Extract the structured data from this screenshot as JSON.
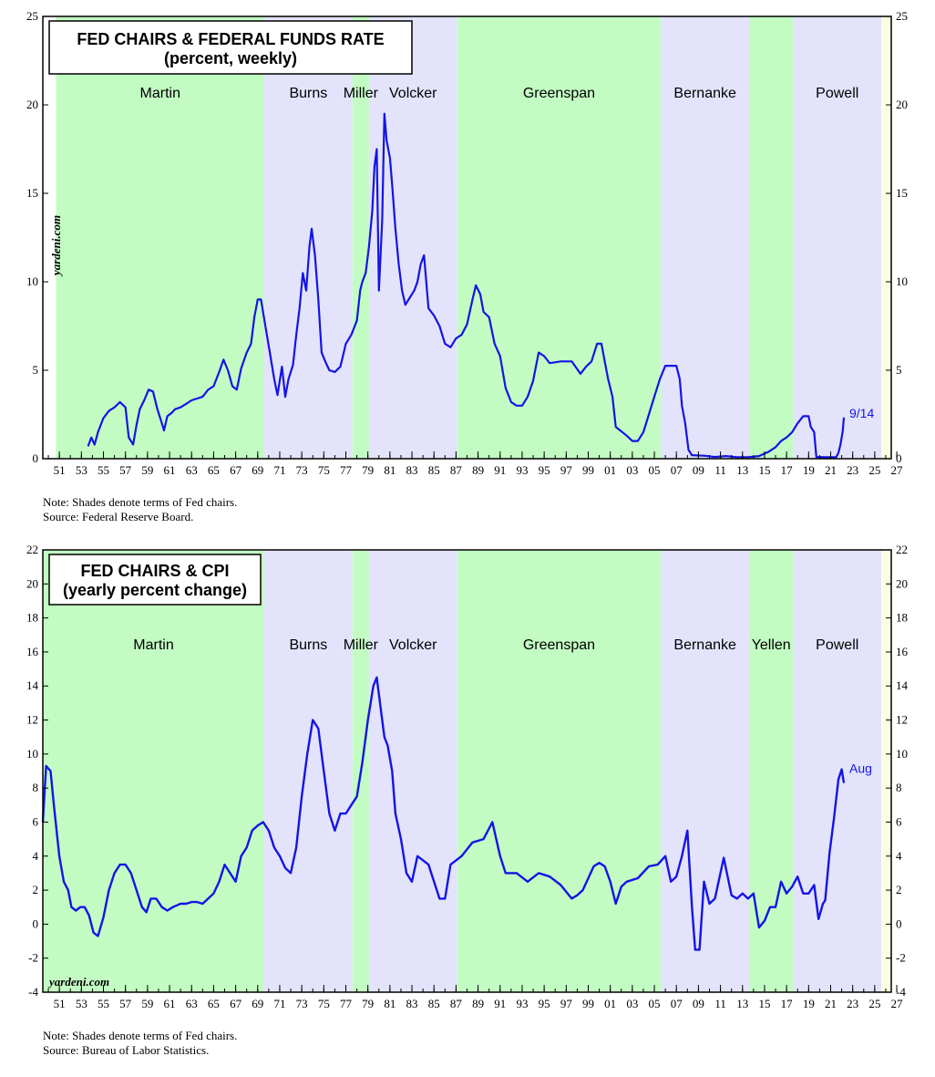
{
  "colors": {
    "line": "#1414e6",
    "green": "#c3fcc3",
    "lavender": "#e3e3fc",
    "future": "#fdfde3"
  },
  "chart_data": [
    {
      "type": "line",
      "id": "ffr",
      "title": "FED CHAIRS & FEDERAL FUNDS RATE",
      "subtitle": "(percent, weekly)",
      "brand": "yardeni.com",
      "xlim": [
        1950.0,
        2027.0
      ],
      "ylim": [
        0,
        25
      ],
      "yticks": [
        "0",
        "5",
        "10",
        "15",
        "20",
        "25"
      ],
      "xtick_labels": [
        "51",
        "53",
        "55",
        "57",
        "59",
        "61",
        "63",
        "65",
        "67",
        "69",
        "71",
        "73",
        "75",
        "77",
        "79",
        "81",
        "83",
        "85",
        "87",
        "89",
        "91",
        "93",
        "95",
        "97",
        "99",
        "01",
        "03",
        "05",
        "07",
        "09",
        "11",
        "13",
        "15",
        "17",
        "19",
        "21",
        "23",
        "25",
        "27"
      ],
      "note": "Note: Shades denote terms of Fed chairs.",
      "source": "Source: Federal Reserve Board.",
      "end_label": "9/14",
      "chairs": [
        {
          "name": "Martin",
          "start": 1951.2,
          "end": 1970.1,
          "shade": "green"
        },
        {
          "name": "Burns",
          "start": 1970.1,
          "end": 1978.1,
          "shade": "lavender"
        },
        {
          "name": "Miller",
          "start": 1978.1,
          "end": 1979.6,
          "shade": "green"
        },
        {
          "name": "Volcker",
          "start": 1979.6,
          "end": 1987.6,
          "shade": "lavender"
        },
        {
          "name": "Greenspan",
          "start": 1987.6,
          "end": 2006.1,
          "shade": "green"
        },
        {
          "name": "Bernanke",
          "start": 2006.1,
          "end": 2014.1,
          "shade": "lavender"
        },
        {
          "name": "",
          "start": 2014.1,
          "end": 2018.1,
          "shade": "green"
        },
        {
          "name": "Powell",
          "start": 2018.1,
          "end": 2026.1,
          "shade": "lavender"
        }
      ],
      "x": [
        1954.1,
        1954.4,
        1954.7,
        1955.0,
        1955.5,
        1956.0,
        1956.5,
        1957.0,
        1957.5,
        1957.8,
        1958.2,
        1958.5,
        1958.8,
        1959.2,
        1959.6,
        1960.0,
        1960.4,
        1960.7,
        1961.0,
        1961.3,
        1961.7,
        1962.0,
        1962.5,
        1963.0,
        1963.5,
        1964.0,
        1964.5,
        1965.0,
        1965.5,
        1966.0,
        1966.4,
        1966.8,
        1967.2,
        1967.6,
        1968.0,
        1968.5,
        1968.9,
        1969.2,
        1969.5,
        1969.8,
        1970.2,
        1970.6,
        1971.0,
        1971.3,
        1971.7,
        1972.0,
        1972.3,
        1972.7,
        1973.0,
        1973.3,
        1973.6,
        1973.9,
        1974.2,
        1974.4,
        1974.7,
        1975.0,
        1975.3,
        1975.7,
        1976.0,
        1976.5,
        1977.0,
        1977.5,
        1978.0,
        1978.5,
        1978.8,
        1979.0,
        1979.3,
        1979.6,
        1979.9,
        1980.1,
        1980.3,
        1980.5,
        1980.8,
        1981.0,
        1981.2,
        1981.5,
        1981.7,
        1982.0,
        1982.3,
        1982.6,
        1982.9,
        1983.3,
        1983.7,
        1984.0,
        1984.3,
        1984.6,
        1985.0,
        1985.5,
        1986.0,
        1986.5,
        1987.0,
        1987.5,
        1988.0,
        1988.5,
        1989.0,
        1989.3,
        1989.7,
        1990.0,
        1990.5,
        1991.0,
        1991.5,
        1992.0,
        1992.5,
        1993.0,
        1993.5,
        1994.0,
        1994.5,
        1995.0,
        1995.5,
        1996.0,
        1997.0,
        1998.0,
        1998.8,
        1999.3,
        1999.8,
        2000.3,
        2000.7,
        2001.0,
        2001.3,
        2001.7,
        2002.0,
        2003.0,
        2003.5,
        2004.0,
        2004.5,
        2005.0,
        2005.5,
        2006.0,
        2006.5,
        2007.0,
        2007.5,
        2007.8,
        2008.0,
        2008.3,
        2008.6,
        2008.9,
        2009.5,
        2010.0,
        2011.0,
        2012.0,
        2013.0,
        2014.0,
        2015.0,
        2015.9,
        2016.5,
        2017.0,
        2017.5,
        2018.0,
        2018.5,
        2019.0,
        2019.5,
        2019.7,
        2020.0,
        2020.2,
        2021.0,
        2022.0,
        2022.2,
        2022.4,
        2022.6,
        2022.7
      ],
      "y": [
        0.7,
        1.2,
        0.8,
        1.5,
        2.3,
        2.7,
        2.9,
        3.2,
        2.9,
        1.2,
        0.8,
        1.9,
        2.8,
        3.3,
        3.9,
        3.8,
        2.8,
        2.2,
        1.6,
        2.4,
        2.6,
        2.8,
        2.9,
        3.1,
        3.3,
        3.4,
        3.5,
        3.9,
        4.1,
        4.9,
        5.6,
        5.0,
        4.1,
        3.9,
        5.1,
        6.0,
        6.5,
        8.0,
        9.0,
        9.0,
        7.5,
        6.0,
        4.5,
        3.6,
        5.2,
        3.5,
        4.5,
        5.3,
        7.0,
        8.5,
        10.5,
        9.5,
        12.0,
        13.0,
        11.5,
        9.0,
        6.0,
        5.4,
        5.0,
        4.9,
        5.2,
        6.5,
        7.0,
        7.8,
        9.5,
        10.0,
        10.5,
        12.0,
        14.0,
        16.5,
        17.5,
        9.5,
        13.5,
        19.5,
        18.0,
        17.0,
        15.5,
        13.0,
        11.0,
        9.5,
        8.7,
        9.1,
        9.5,
        10.0,
        11.0,
        11.5,
        8.5,
        8.1,
        7.5,
        6.5,
        6.3,
        6.8,
        7.0,
        7.6,
        9.0,
        9.8,
        9.3,
        8.3,
        8.0,
        6.5,
        5.8,
        4.0,
        3.2,
        3.0,
        3.0,
        3.5,
        4.4,
        6.0,
        5.8,
        5.4,
        5.5,
        5.5,
        4.8,
        5.2,
        5.5,
        6.5,
        6.5,
        5.5,
        4.5,
        3.5,
        1.8,
        1.3,
        1.0,
        1.0,
        1.5,
        2.5,
        3.5,
        4.5,
        5.25,
        5.25,
        5.25,
        4.5,
        3.0,
        2.0,
        0.5,
        0.2,
        0.18,
        0.17,
        0.1,
        0.15,
        0.09,
        0.09,
        0.15,
        0.4,
        0.65,
        1.0,
        1.2,
        1.5,
        2.0,
        2.4,
        2.4,
        1.8,
        1.5,
        0.1,
        0.08,
        0.08,
        0.33,
        0.83,
        1.58,
        2.33
      ]
    },
    {
      "type": "line",
      "id": "cpi",
      "title": "FED CHAIRS & CPI",
      "subtitle": "(yearly percent change)",
      "brand": "yardeni.com",
      "xlim": [
        1950.0,
        2027.0
      ],
      "ylim": [
        -4,
        22
      ],
      "yticks": [
        "-4",
        "-2",
        "0",
        "2",
        "4",
        "6",
        "8",
        "10",
        "12",
        "14",
        "16",
        "18",
        "20",
        "22"
      ],
      "xtick_labels": [
        "51",
        "53",
        "55",
        "57",
        "59",
        "61",
        "63",
        "65",
        "67",
        "69",
        "71",
        "73",
        "75",
        "77",
        "79",
        "81",
        "83",
        "85",
        "87",
        "89",
        "91",
        "93",
        "95",
        "97",
        "99",
        "01",
        "03",
        "05",
        "07",
        "09",
        "11",
        "13",
        "15",
        "17",
        "19",
        "21",
        "23",
        "25",
        "27"
      ],
      "note": "Note: Shades denote terms of Fed chairs.",
      "source": "Source: Bureau of Labor Statistics.",
      "end_label": "Aug",
      "chairs": [
        {
          "name": "Martin",
          "start": 1950.0,
          "end": 1970.1,
          "shade": "green"
        },
        {
          "name": "Burns",
          "start": 1970.1,
          "end": 1978.1,
          "shade": "lavender"
        },
        {
          "name": "Miller",
          "start": 1978.1,
          "end": 1979.6,
          "shade": "green"
        },
        {
          "name": "Volcker",
          "start": 1979.6,
          "end": 1987.6,
          "shade": "lavender"
        },
        {
          "name": "Greenspan",
          "start": 1987.6,
          "end": 2006.1,
          "shade": "green"
        },
        {
          "name": "Bernanke",
          "start": 2006.1,
          "end": 2014.1,
          "shade": "lavender"
        },
        {
          "name": "Yellen",
          "start": 2014.1,
          "end": 2018.1,
          "shade": "green"
        },
        {
          "name": "Powell",
          "start": 2018.1,
          "end": 2026.1,
          "shade": "lavender"
        }
      ],
      "x": [
        1950.0,
        1950.3,
        1950.7,
        1951.0,
        1951.5,
        1951.9,
        1952.3,
        1952.6,
        1953.0,
        1953.4,
        1953.8,
        1954.2,
        1954.6,
        1955.0,
        1955.5,
        1956.0,
        1956.5,
        1957.0,
        1957.5,
        1958.0,
        1958.5,
        1959.0,
        1959.4,
        1959.8,
        1960.3,
        1960.8,
        1961.3,
        1961.8,
        1962.5,
        1963.0,
        1963.5,
        1964.0,
        1964.5,
        1965.0,
        1965.5,
        1966.0,
        1966.5,
        1967.0,
        1967.5,
        1968.0,
        1968.5,
        1969.0,
        1969.5,
        1970.0,
        1970.5,
        1971.0,
        1971.5,
        1972.0,
        1972.5,
        1973.0,
        1973.5,
        1974.0,
        1974.5,
        1975.0,
        1975.5,
        1976.0,
        1976.5,
        1977.0,
        1977.5,
        1978.0,
        1978.5,
        1979.0,
        1979.5,
        1980.0,
        1980.3,
        1980.6,
        1981.0,
        1981.3,
        1981.7,
        1982.0,
        1982.5,
        1983.0,
        1983.5,
        1984.0,
        1985.0,
        1986.0,
        1986.5,
        1987.0,
        1988.0,
        1989.0,
        1990.0,
        1990.8,
        1991.5,
        1992.0,
        1993.0,
        1994.0,
        1995.0,
        1996.0,
        1997.0,
        1998.0,
        1998.5,
        1999.0,
        2000.0,
        2000.5,
        2001.0,
        2001.5,
        2002.0,
        2002.5,
        2003.0,
        2004.0,
        2005.0,
        2005.8,
        2006.5,
        2007.0,
        2007.5,
        2008.0,
        2008.5,
        2008.9,
        2009.2,
        2009.6,
        2010.0,
        2010.5,
        2011.0,
        2011.8,
        2012.5,
        2013.0,
        2013.5,
        2014.0,
        2014.5,
        2015.0,
        2015.5,
        2016.0,
        2016.5,
        2017.0,
        2017.5,
        2018.0,
        2018.5,
        2019.0,
        2019.5,
        2020.0,
        2020.4,
        2020.8,
        2021.0,
        2021.4,
        2021.8,
        2022.2,
        2022.5,
        2022.7
      ],
      "y": [
        6.0,
        9.3,
        9.0,
        7.0,
        4.0,
        2.5,
        2.0,
        1.0,
        0.8,
        1.0,
        1.0,
        0.5,
        -0.5,
        -0.7,
        0.4,
        2.0,
        3.0,
        3.5,
        3.5,
        3.0,
        2.0,
        1.0,
        0.7,
        1.5,
        1.5,
        1.0,
        0.8,
        1.0,
        1.2,
        1.2,
        1.3,
        1.3,
        1.2,
        1.5,
        1.8,
        2.5,
        3.5,
        3.0,
        2.5,
        4.0,
        4.5,
        5.5,
        5.8,
        6.0,
        5.5,
        4.5,
        4.0,
        3.3,
        3.0,
        4.5,
        7.5,
        10.0,
        12.0,
        11.5,
        9.0,
        6.5,
        5.5,
        6.5,
        6.5,
        7.0,
        7.5,
        9.5,
        12.0,
        14.0,
        14.5,
        13.0,
        11.0,
        10.5,
        9.0,
        6.5,
        5.0,
        3.0,
        2.5,
        4.0,
        3.5,
        1.5,
        1.5,
        3.5,
        4.0,
        4.8,
        5.0,
        6.0,
        4.0,
        3.0,
        3.0,
        2.5,
        3.0,
        2.8,
        2.3,
        1.5,
        1.7,
        2.0,
        3.4,
        3.6,
        3.4,
        2.5,
        1.2,
        2.2,
        2.5,
        2.7,
        3.4,
        3.5,
        4.0,
        2.5,
        2.8,
        4.0,
        5.5,
        1.1,
        -1.5,
        -1.5,
        2.5,
        1.2,
        1.5,
        3.9,
        1.7,
        1.5,
        1.8,
        1.5,
        1.8,
        -0.2,
        0.2,
        1.0,
        1.0,
        2.5,
        1.8,
        2.2,
        2.8,
        1.8,
        1.8,
        2.3,
        0.3,
        1.2,
        1.4,
        4.2,
        6.2,
        8.5,
        9.1,
        8.3
      ]
    }
  ]
}
